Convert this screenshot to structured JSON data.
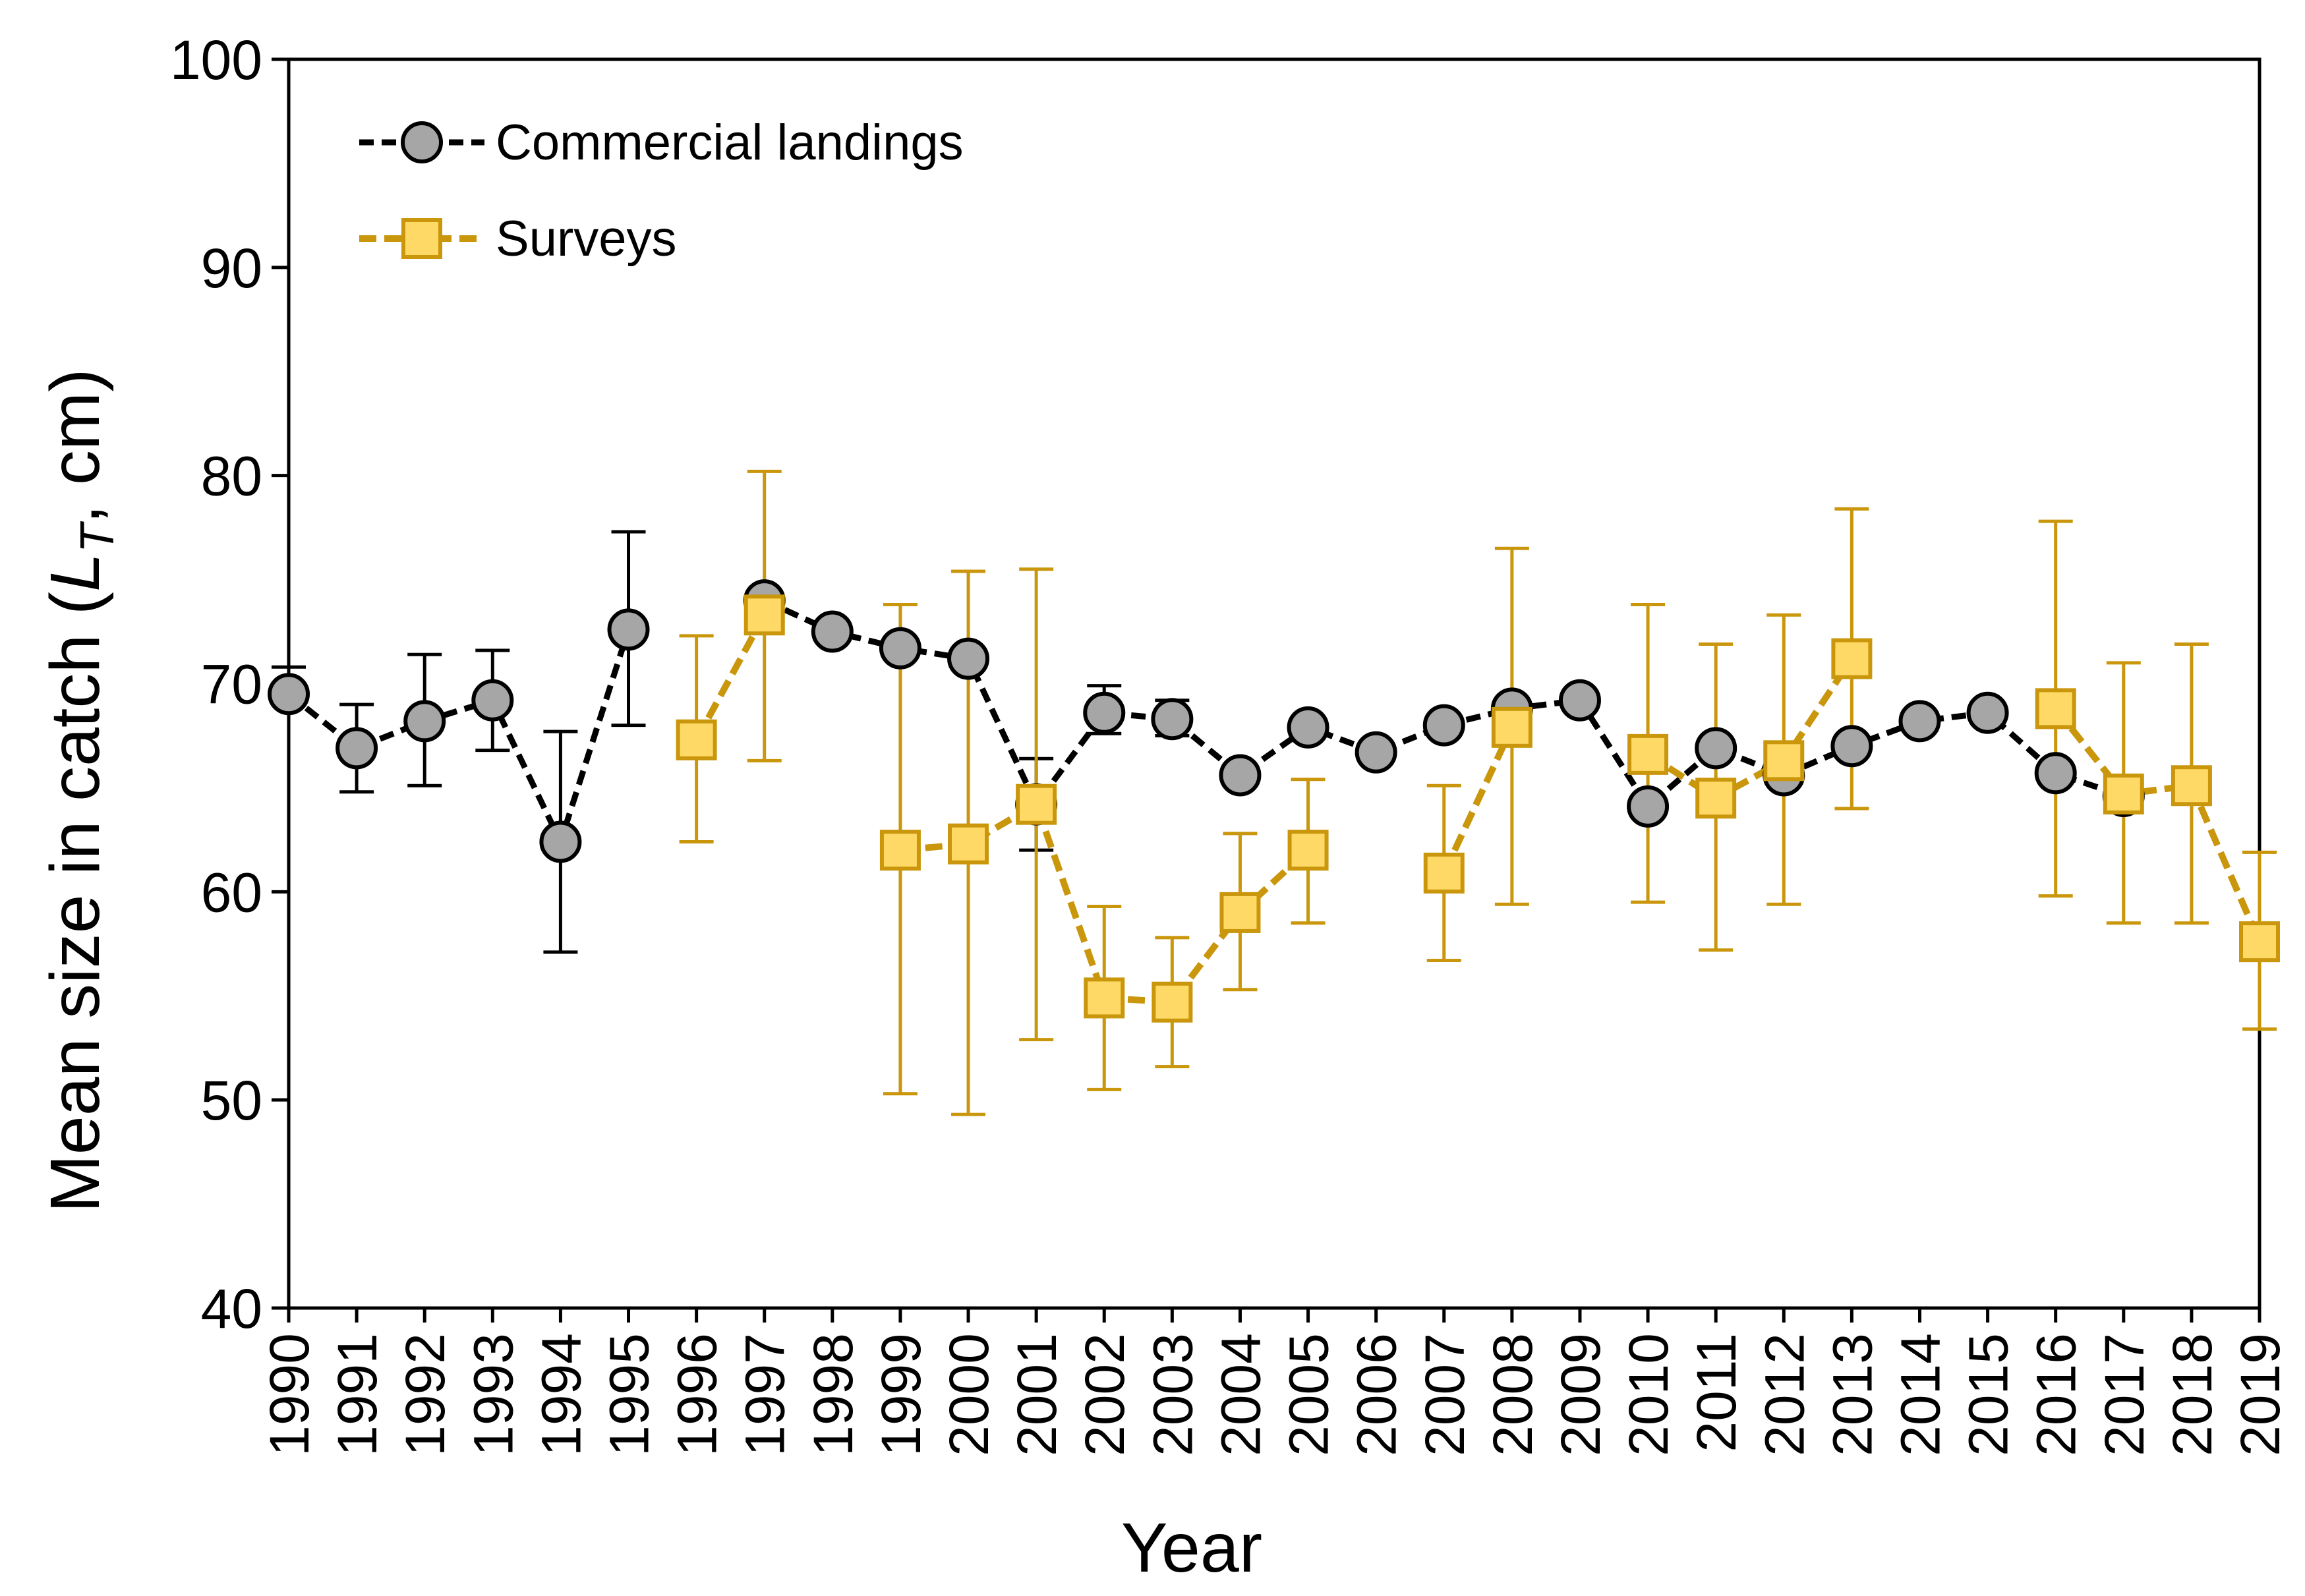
{
  "chart_data": {
    "type": "line",
    "title": "",
    "xlabel": "Year",
    "ylabel_prefix": "Mean size in catch (",
    "ylabel_var": "L",
    "ylabel_sub": "T",
    "ylabel_suffix": ", cm)",
    "ylim": [
      40,
      100
    ],
    "yticks": [
      40,
      50,
      60,
      70,
      80,
      90,
      100
    ],
    "categories": [
      "1990",
      "1991",
      "1992",
      "1993",
      "1994",
      "1995",
      "1996",
      "1997",
      "1998",
      "1999",
      "2000",
      "2001",
      "2002",
      "2003",
      "2004",
      "2005",
      "2006",
      "2007",
      "2008",
      "2009",
      "2010",
      "2011",
      "2012",
      "2013",
      "2014",
      "2015",
      "2016",
      "2017",
      "2018",
      "2019"
    ],
    "legend_position": "top-left",
    "series": [
      {
        "name": "Commercial landings",
        "marker": "circle",
        "color": "#000000",
        "fill": "#a6a6a6",
        "values": [
          69.5,
          66.9,
          68.2,
          69.2,
          62.4,
          72.6,
          null,
          74.0,
          72.5,
          71.7,
          71.2,
          64.2,
          68.6,
          68.3,
          65.6,
          67.9,
          66.7,
          68.0,
          68.8,
          69.2,
          64.1,
          66.9,
          65.6,
          67.0,
          68.2,
          68.6,
          65.7,
          64.6,
          null,
          null
        ],
        "err_low": [
          null,
          64.8,
          65.1,
          66.8,
          57.1,
          68.0,
          null,
          null,
          null,
          null,
          null,
          62.0,
          67.6,
          67.5,
          null,
          null,
          null,
          null,
          null,
          null,
          null,
          null,
          null,
          null,
          null,
          null,
          null,
          null,
          null,
          null
        ],
        "err_high": [
          70.8,
          69.0,
          71.4,
          71.6,
          67.7,
          77.3,
          null,
          null,
          null,
          null,
          null,
          66.4,
          69.9,
          69.2,
          null,
          null,
          null,
          null,
          null,
          null,
          null,
          null,
          null,
          null,
          null,
          null,
          null,
          null,
          null,
          null
        ]
      },
      {
        "name": "Surveys",
        "marker": "square",
        "color": "#c9960c",
        "fill": "#ffd966",
        "values": [
          null,
          null,
          null,
          null,
          null,
          null,
          67.3,
          73.3,
          null,
          62.0,
          62.3,
          64.2,
          54.9,
          54.7,
          59.0,
          62.0,
          null,
          60.9,
          67.9,
          null,
          66.6,
          64.5,
          66.3,
          71.2,
          null,
          null,
          68.8,
          64.7,
          65.1,
          57.6
        ],
        "err_low": [
          null,
          null,
          null,
          null,
          null,
          null,
          62.4,
          66.3,
          null,
          50.3,
          49.3,
          52.9,
          50.5,
          51.6,
          55.3,
          58.5,
          null,
          56.7,
          59.4,
          null,
          59.5,
          57.2,
          59.4,
          64.0,
          null,
          null,
          59.8,
          58.5,
          58.5,
          53.4
        ],
        "err_high": [
          null,
          null,
          null,
          null,
          null,
          null,
          72.3,
          80.2,
          null,
          73.8,
          75.4,
          75.5,
          59.3,
          57.8,
          62.8,
          65.4,
          null,
          65.1,
          76.5,
          null,
          73.8,
          71.9,
          73.3,
          78.4,
          null,
          null,
          77.8,
          71.0,
          71.9,
          61.9
        ]
      }
    ]
  }
}
